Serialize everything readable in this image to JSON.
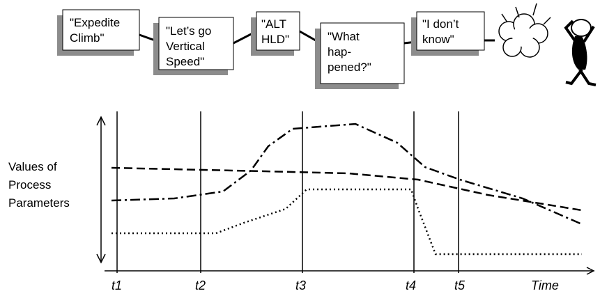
{
  "boxes": [
    {
      "lines": [
        "\"Expedite",
        "Climb\""
      ]
    },
    {
      "lines": [
        "\"Let’s go",
        "Vertical",
        "Speed\""
      ]
    },
    {
      "lines": [
        "\"ALT",
        "HLD\""
      ]
    },
    {
      "lines": [
        "\"What",
        "hap-",
        "pened?\""
      ]
    },
    {
      "lines": [
        "\"I don’t",
        "know\""
      ]
    }
  ],
  "y_axis_label": [
    "Values of",
    "Process",
    "Parameters"
  ],
  "time_labels": [
    "t1",
    "t2",
    "t3",
    "t4",
    "t5"
  ],
  "x_axis_label": "Time"
}
